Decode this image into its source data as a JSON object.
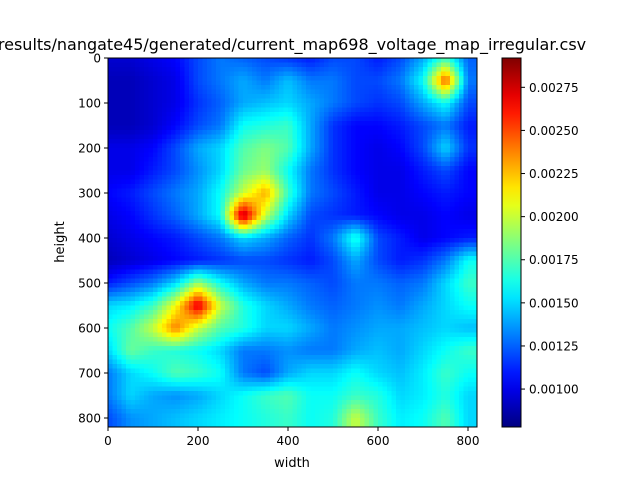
{
  "chart_data": {
    "type": "heatmap",
    "title": "results/nangate45/generated/current_map698_voltage_map_irregular.csv",
    "xlabel": "width",
    "ylabel": "height",
    "xlim": [
      0,
      820
    ],
    "ylim": [
      820,
      0
    ],
    "x_ticks": [
      "0",
      "200",
      "400",
      "600",
      "800"
    ],
    "y_ticks": [
      "0",
      "100",
      "200",
      "300",
      "400",
      "500",
      "600",
      "700",
      "800"
    ],
    "colorbar": {
      "colormap": "jet",
      "range": [
        0.00078,
        0.00292
      ],
      "ticks": [
        "0.00100",
        "0.00125",
        "0.00150",
        "0.00175",
        "0.00200",
        "0.00225",
        "0.00250",
        "0.00275"
      ]
    },
    "x_centers": [
      0,
      50,
      100,
      150,
      200,
      250,
      300,
      350,
      400,
      450,
      500,
      550,
      600,
      650,
      700,
      750,
      800
    ],
    "y_centers": [
      0,
      50,
      100,
      150,
      200,
      250,
      300,
      350,
      400,
      450,
      500,
      550,
      600,
      650,
      700,
      750,
      800
    ],
    "values": [
      [
        0.00095,
        0.00095,
        0.001,
        0.00105,
        0.0012,
        0.0013,
        0.00125,
        0.0012,
        0.00115,
        0.0011,
        0.0012,
        0.0012,
        0.0011,
        0.0012,
        0.0014,
        0.0017,
        0.00125
      ],
      [
        0.0009,
        0.0009,
        0.00095,
        0.001,
        0.0012,
        0.0013,
        0.0014,
        0.0013,
        0.00145,
        0.0013,
        0.0013,
        0.0012,
        0.0012,
        0.0013,
        0.0016,
        0.0025,
        0.0013
      ],
      [
        0.0009,
        0.0009,
        0.00095,
        0.001,
        0.00115,
        0.00125,
        0.0014,
        0.00145,
        0.0015,
        0.0014,
        0.0013,
        0.0012,
        0.00115,
        0.0012,
        0.0014,
        0.0016,
        0.0012
      ],
      [
        0.0009,
        0.0009,
        0.00095,
        0.00105,
        0.0012,
        0.0013,
        0.0016,
        0.00165,
        0.0017,
        0.0014,
        0.00115,
        0.00105,
        0.00105,
        0.0011,
        0.0012,
        0.0013,
        0.0011
      ],
      [
        0.001,
        0.001,
        0.00105,
        0.0012,
        0.0014,
        0.0015,
        0.00175,
        0.00185,
        0.00175,
        0.0014,
        0.00115,
        0.00105,
        0.001,
        0.00105,
        0.0012,
        0.0015,
        0.00115
      ],
      [
        0.001,
        0.001,
        0.0011,
        0.0012,
        0.00135,
        0.0015,
        0.0018,
        0.0019,
        0.0016,
        0.0013,
        0.00115,
        0.00105,
        0.001,
        0.001,
        0.0011,
        0.0012,
        0.00105
      ],
      [
        0.00105,
        0.0011,
        0.0012,
        0.0013,
        0.0014,
        0.0016,
        0.002,
        0.0023,
        0.0017,
        0.0013,
        0.0012,
        0.0011,
        0.001,
        0.001,
        0.00105,
        0.0011,
        0.00105
      ],
      [
        0.001,
        0.00105,
        0.00115,
        0.00125,
        0.0014,
        0.0016,
        0.00285,
        0.002,
        0.0015,
        0.0012,
        0.00115,
        0.0011,
        0.00105,
        0.001,
        0.001,
        0.00105,
        0.001
      ],
      [
        0.00095,
        0.001,
        0.00105,
        0.0011,
        0.0012,
        0.0013,
        0.0015,
        0.0014,
        0.00125,
        0.00115,
        0.0013,
        0.00165,
        0.0012,
        0.0011,
        0.001,
        0.00105,
        0.0011
      ],
      [
        0.0009,
        0.00095,
        0.001,
        0.00105,
        0.0011,
        0.00115,
        0.0012,
        0.0012,
        0.00115,
        0.0011,
        0.0012,
        0.0014,
        0.0012,
        0.0011,
        0.00115,
        0.0013,
        0.0016
      ],
      [
        0.0011,
        0.0012,
        0.0013,
        0.0015,
        0.0019,
        0.0016,
        0.0014,
        0.0013,
        0.0013,
        0.00125,
        0.0012,
        0.0013,
        0.0013,
        0.00125,
        0.0013,
        0.0015,
        0.0017
      ],
      [
        0.0015,
        0.00155,
        0.0017,
        0.0021,
        0.00275,
        0.002,
        0.00165,
        0.0015,
        0.0014,
        0.0013,
        0.00125,
        0.0013,
        0.00135,
        0.0013,
        0.0014,
        0.0015,
        0.0016
      ],
      [
        0.0016,
        0.00175,
        0.002,
        0.0024,
        0.002,
        0.00175,
        0.00165,
        0.0015,
        0.0015,
        0.0014,
        0.0013,
        0.00135,
        0.0014,
        0.0014,
        0.00145,
        0.0015,
        0.00145
      ],
      [
        0.0015,
        0.0018,
        0.0017,
        0.00165,
        0.0016,
        0.0015,
        0.0013,
        0.0013,
        0.00135,
        0.0013,
        0.0013,
        0.0014,
        0.00145,
        0.0014,
        0.0015,
        0.0016,
        0.0017
      ],
      [
        0.0013,
        0.0015,
        0.0016,
        0.00175,
        0.0017,
        0.0016,
        0.0013,
        0.0012,
        0.0014,
        0.0015,
        0.0015,
        0.0016,
        0.0015,
        0.00145,
        0.00155,
        0.0017,
        0.0016
      ],
      [
        0.0013,
        0.0015,
        0.0014,
        0.00135,
        0.0014,
        0.0015,
        0.0016,
        0.0017,
        0.00175,
        0.0016,
        0.0016,
        0.0017,
        0.00165,
        0.0015,
        0.00155,
        0.00165,
        0.0015
      ],
      [
        0.0012,
        0.00135,
        0.0014,
        0.00145,
        0.0015,
        0.00155,
        0.0016,
        0.00165,
        0.0017,
        0.0016,
        0.00165,
        0.002,
        0.0017,
        0.00155,
        0.0016,
        0.00175,
        0.0015
      ]
    ]
  }
}
